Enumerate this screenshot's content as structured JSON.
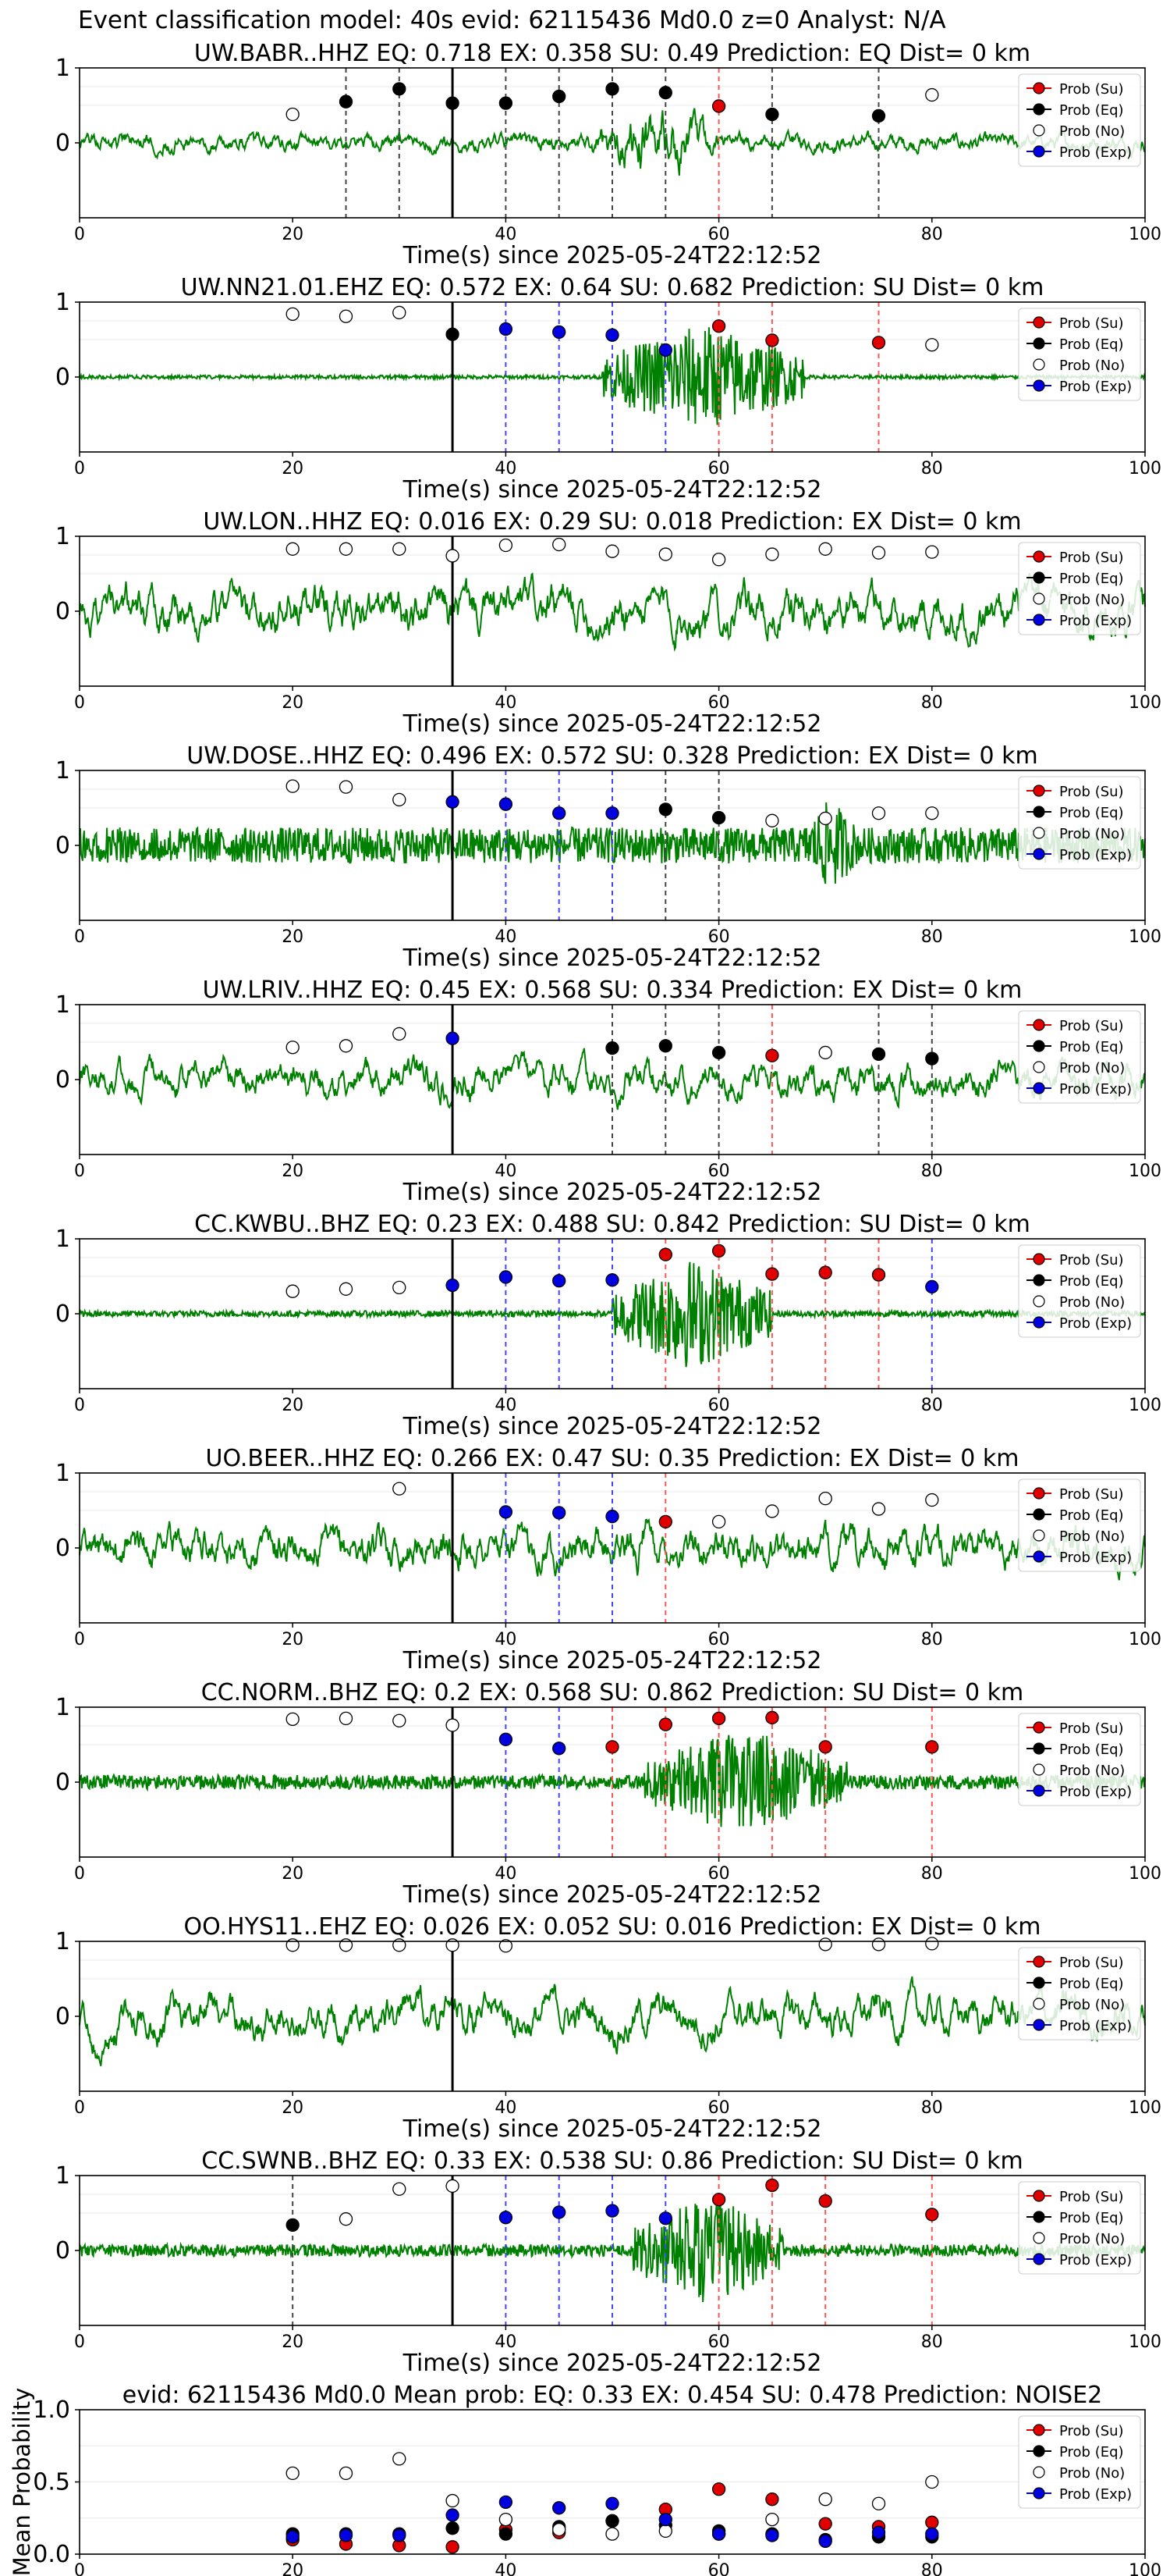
{
  "figure": {
    "title": "Event classification model: 40s evid: 62115436 Md0.0 z=0 Analyst: N/A",
    "legend_position": "top-right",
    "legend_entries": [
      {
        "label": "Prob (Su)",
        "color": "#e00000",
        "marker": "filled"
      },
      {
        "label": "Prob (Eq)",
        "color": "#000000",
        "marker": "filled"
      },
      {
        "label": "Prob (No)",
        "color": "#ffffff",
        "marker": "hollow"
      },
      {
        "label": "Prob (Exp)",
        "color": "#0000e0",
        "marker": "filled"
      }
    ],
    "colors": {
      "waveform": "#008000",
      "su": "#e00000",
      "eq": "#000000",
      "no": "#ffffff",
      "exp": "#0000e0",
      "dash_su": "#ff5555",
      "dash_eq": "#444444",
      "dash_exp": "#4444ff"
    },
    "xlabel": "Time(s) since 2025-05-24T22:12:52"
  },
  "chart_data": [
    {
      "type": "line",
      "station": "UW.BABR..HHZ",
      "title": "UW.BABR..HHZ   EQ: 0.718  EX: 0.358  SU: 0.49   Prediction: EQ    Dist= 0 km",
      "xlim": [
        0,
        100
      ],
      "ylim": [
        -1,
        1
      ],
      "xticks": [
        0,
        20,
        40,
        60,
        80,
        100
      ],
      "yticks": [
        0,
        1
      ],
      "signal_start": 35,
      "amp": 0.25,
      "burst": [
        48,
        60,
        1.0
      ],
      "seed": 1,
      "smooth": 0.2,
      "points": {
        "su": [
          [
            60,
            0.49
          ]
        ],
        "eq": [
          [
            25,
            0.55
          ],
          [
            30,
            0.72
          ],
          [
            35,
            0.53
          ],
          [
            40,
            0.53
          ],
          [
            45,
            0.62
          ],
          [
            50,
            0.72
          ],
          [
            55,
            0.67
          ],
          [
            65,
            0.38
          ],
          [
            75,
            0.36
          ]
        ],
        "no": [
          [
            20,
            0.38
          ],
          [
            80,
            0.64
          ]
        ],
        "exp": []
      }
    },
    {
      "type": "line",
      "station": "UW.NN21.01.EHZ",
      "title": "UW.NN21.01.EHZ   EQ: 0.572  EX: 0.64  SU: 0.682   Prediction: SU    Dist= 0 km",
      "xlim": [
        0,
        100
      ],
      "ylim": [
        -1,
        1
      ],
      "xticks": [
        0,
        20,
        40,
        60,
        80,
        100
      ],
      "yticks": [
        0,
        1
      ],
      "signal_start": 35,
      "amp": 0.03,
      "burst": [
        49,
        68,
        0.9
      ],
      "seed": 2,
      "smooth": 0.7,
      "points": {
        "su": [
          [
            60,
            0.68
          ],
          [
            65,
            0.49
          ],
          [
            75,
            0.46
          ]
        ],
        "eq": [
          [
            35,
            0.57
          ]
        ],
        "no": [
          [
            20,
            0.84
          ],
          [
            25,
            0.81
          ],
          [
            30,
            0.86
          ],
          [
            80,
            0.43
          ]
        ],
        "exp": [
          [
            40,
            0.64
          ],
          [
            45,
            0.6
          ],
          [
            50,
            0.56
          ],
          [
            55,
            0.36
          ]
        ]
      }
    },
    {
      "type": "line",
      "station": "UW.LON..HHZ",
      "title": "UW.LON..HHZ   EQ: 0.016  EX: 0.29  SU: 0.018   Prediction: EX    Dist= 0 km",
      "xlim": [
        0,
        100
      ],
      "ylim": [
        -1,
        1
      ],
      "xticks": [
        0,
        20,
        40,
        60,
        80,
        100
      ],
      "yticks": [
        0,
        1
      ],
      "signal_start": 35,
      "amp": 0.8,
      "burst": [
        0,
        0,
        0
      ],
      "seed": 3,
      "smooth": 0.12,
      "points": {
        "su": [],
        "eq": [],
        "no": [
          [
            20,
            0.83
          ],
          [
            25,
            0.83
          ],
          [
            30,
            0.83
          ],
          [
            35,
            0.74
          ],
          [
            40,
            0.88
          ],
          [
            45,
            0.89
          ],
          [
            50,
            0.8
          ],
          [
            55,
            0.76
          ],
          [
            60,
            0.69
          ],
          [
            65,
            0.76
          ],
          [
            70,
            0.83
          ],
          [
            75,
            0.78
          ],
          [
            80,
            0.79
          ]
        ],
        "exp": []
      }
    },
    {
      "type": "line",
      "station": "UW.DOSE..HHZ",
      "title": "UW.DOSE..HHZ   EQ: 0.496  EX: 0.572  SU: 0.328   Prediction: EX    Dist= 0 km",
      "xlim": [
        0,
        100
      ],
      "ylim": [
        -1,
        1
      ],
      "xticks": [
        0,
        20,
        40,
        60,
        80,
        100
      ],
      "yticks": [
        0,
        1
      ],
      "signal_start": 35,
      "amp": 0.3,
      "burst": [
        68,
        73,
        0.8
      ],
      "seed": 4,
      "smooth": 0.4,
      "points": {
        "su": [],
        "eq": [
          [
            55,
            0.48
          ],
          [
            60,
            0.37
          ]
        ],
        "no": [
          [
            20,
            0.79
          ],
          [
            25,
            0.78
          ],
          [
            30,
            0.61
          ],
          [
            65,
            0.33
          ],
          [
            70,
            0.36
          ],
          [
            75,
            0.43
          ],
          [
            80,
            0.43
          ]
        ],
        "exp": [
          [
            35,
            0.58
          ],
          [
            40,
            0.55
          ],
          [
            45,
            0.43
          ],
          [
            50,
            0.43
          ]
        ]
      }
    },
    {
      "type": "line",
      "station": "UW.LRIV..HHZ",
      "title": "UW.LRIV..HHZ   EQ: 0.45  EX: 0.568  SU: 0.334   Prediction: EX    Dist= 0 km",
      "xlim": [
        0,
        100
      ],
      "ylim": [
        -1,
        1
      ],
      "xticks": [
        0,
        20,
        40,
        60,
        80,
        100
      ],
      "yticks": [
        0,
        1
      ],
      "signal_start": 35,
      "amp": 0.55,
      "burst": [
        0,
        0,
        0
      ],
      "seed": 5,
      "smooth": 0.15,
      "points": {
        "su": [
          [
            65,
            0.32
          ]
        ],
        "eq": [
          [
            50,
            0.42
          ],
          [
            55,
            0.45
          ],
          [
            60,
            0.36
          ],
          [
            75,
            0.34
          ],
          [
            80,
            0.28
          ]
        ],
        "no": [
          [
            20,
            0.43
          ],
          [
            25,
            0.45
          ],
          [
            30,
            0.61
          ],
          [
            70,
            0.36
          ]
        ],
        "exp": [
          [
            35,
            0.55
          ]
        ]
      }
    },
    {
      "type": "line",
      "station": "CC.KWBU..BHZ",
      "title": "CC.KWBU..BHZ   EQ: 0.23  EX: 0.488  SU: 0.842   Prediction: SU    Dist= 0 km",
      "xlim": [
        0,
        100
      ],
      "ylim": [
        -1,
        1
      ],
      "xticks": [
        0,
        20,
        40,
        60,
        80,
        100
      ],
      "yticks": [
        0,
        1
      ],
      "signal_start": 35,
      "amp": 0.05,
      "burst": [
        50,
        65,
        0.95
      ],
      "seed": 6,
      "smooth": 0.5,
      "points": {
        "su": [
          [
            55,
            0.79
          ],
          [
            60,
            0.84
          ],
          [
            65,
            0.53
          ],
          [
            70,
            0.55
          ],
          [
            75,
            0.52
          ]
        ],
        "eq": [],
        "no": [
          [
            20,
            0.3
          ],
          [
            25,
            0.33
          ],
          [
            30,
            0.35
          ]
        ],
        "exp": [
          [
            35,
            0.38
          ],
          [
            40,
            0.49
          ],
          [
            45,
            0.44
          ],
          [
            50,
            0.45
          ],
          [
            80,
            0.36
          ]
        ]
      }
    },
    {
      "type": "line",
      "station": "UO.BEER..HHZ",
      "title": "UO.BEER..HHZ   EQ: 0.266  EX: 0.47  SU: 0.35   Prediction: EX    Dist= 0 km",
      "xlim": [
        0,
        100
      ],
      "ylim": [
        -1,
        1
      ],
      "xticks": [
        0,
        20,
        40,
        60,
        80,
        100
      ],
      "yticks": [
        0,
        1
      ],
      "signal_start": 35,
      "amp": 0.55,
      "burst": [
        50,
        56,
        0.8
      ],
      "seed": 7,
      "smooth": 0.2,
      "points": {
        "su": [
          [
            55,
            0.35
          ]
        ],
        "eq": [],
        "no": [
          [
            30,
            0.79
          ],
          [
            60,
            0.35
          ],
          [
            65,
            0.49
          ],
          [
            70,
            0.66
          ],
          [
            75,
            0.52
          ],
          [
            80,
            0.64
          ]
        ],
        "exp": [
          [
            40,
            0.48
          ],
          [
            45,
            0.47
          ],
          [
            50,
            0.42
          ]
        ]
      }
    },
    {
      "type": "line",
      "station": "CC.NORM..BHZ",
      "title": "CC.NORM..BHZ   EQ: 0.2  EX: 0.568  SU: 0.862   Prediction: SU    Dist= 0 km",
      "xlim": [
        0,
        100
      ],
      "ylim": [
        -1,
        1
      ],
      "xticks": [
        0,
        20,
        40,
        60,
        80,
        100
      ],
      "yticks": [
        0,
        1
      ],
      "signal_start": 35,
      "amp": 0.12,
      "burst": [
        53,
        72,
        0.9
      ],
      "seed": 8,
      "smooth": 0.5,
      "points": {
        "su": [
          [
            50,
            0.47
          ],
          [
            55,
            0.77
          ],
          [
            60,
            0.85
          ],
          [
            65,
            0.86
          ],
          [
            70,
            0.47
          ],
          [
            80,
            0.47
          ]
        ],
        "eq": [],
        "no": [
          [
            20,
            0.84
          ],
          [
            25,
            0.85
          ],
          [
            30,
            0.82
          ],
          [
            35,
            0.76
          ]
        ],
        "exp": [
          [
            40,
            0.57
          ],
          [
            45,
            0.45
          ]
        ]
      }
    },
    {
      "type": "line",
      "station": "OO.HYS11..EHZ",
      "title": "OO.HYS11..EHZ   EQ: 0.026  EX: 0.052  SU: 0.016   Prediction: EX    Dist= 0 km",
      "xlim": [
        0,
        100
      ],
      "ylim": [
        -1,
        1
      ],
      "xticks": [
        0,
        20,
        40,
        60,
        80,
        100
      ],
      "yticks": [
        0,
        1
      ],
      "signal_start": 35,
      "amp": 0.85,
      "burst": [
        0,
        0,
        0
      ],
      "seed": 9,
      "smooth": 0.08,
      "points": {
        "su": [],
        "eq": [],
        "no": [
          [
            20,
            0.95
          ],
          [
            25,
            0.95
          ],
          [
            30,
            0.95
          ],
          [
            35,
            0.95
          ],
          [
            40,
            0.94
          ],
          [
            70,
            0.96
          ],
          [
            75,
            0.96
          ],
          [
            80,
            0.97
          ]
        ],
        "exp": []
      }
    },
    {
      "type": "line",
      "station": "CC.SWNB..BHZ",
      "title": "CC.SWNB..BHZ   EQ: 0.33  EX: 0.538  SU: 0.86   Prediction: SU    Dist= 0 km",
      "xlim": [
        0,
        100
      ],
      "ylim": [
        -1,
        1
      ],
      "xticks": [
        0,
        20,
        40,
        60,
        80,
        100
      ],
      "yticks": [
        0,
        1
      ],
      "signal_start": 35,
      "amp": 0.1,
      "burst": [
        52,
        66,
        0.95
      ],
      "seed": 10,
      "smooth": 0.5,
      "points": {
        "su": [
          [
            60,
            0.68
          ],
          [
            65,
            0.87
          ],
          [
            70,
            0.66
          ],
          [
            80,
            0.48
          ]
        ],
        "eq": [
          [
            20,
            0.34
          ]
        ],
        "no": [
          [
            25,
            0.42
          ],
          [
            30,
            0.82
          ],
          [
            35,
            0.86
          ]
        ],
        "exp": [
          [
            40,
            0.44
          ],
          [
            45,
            0.51
          ],
          [
            50,
            0.53
          ],
          [
            55,
            0.43
          ]
        ]
      }
    },
    {
      "type": "scatter",
      "station": "mean",
      "title": "evid: 62115436  Md0.0   Mean prob:   EQ: 0.33  EX: 0.454  SU: 0.478   Prediction: NOISE2",
      "ylabel": "Mean Probability",
      "xlim": [
        0,
        100
      ],
      "ylim": [
        0,
        1
      ],
      "xticks": [
        0,
        20,
        40,
        60,
        80,
        100
      ],
      "yticks": [
        0.0,
        0.5,
        1.0
      ],
      "points": {
        "su": [
          [
            20,
            0.1
          ],
          [
            25,
            0.07
          ],
          [
            30,
            0.06
          ],
          [
            35,
            0.05
          ],
          [
            40,
            0.17
          ],
          [
            45,
            0.15
          ],
          [
            50,
            0.23
          ],
          [
            55,
            0.31
          ],
          [
            60,
            0.45
          ],
          [
            65,
            0.38
          ],
          [
            70,
            0.21
          ],
          [
            75,
            0.19
          ],
          [
            80,
            0.22
          ]
        ],
        "eq": [
          [
            20,
            0.14
          ],
          [
            25,
            0.14
          ],
          [
            30,
            0.14
          ],
          [
            35,
            0.18
          ],
          [
            40,
            0.14
          ],
          [
            45,
            0.19
          ],
          [
            50,
            0.23
          ],
          [
            55,
            0.2
          ],
          [
            60,
            0.16
          ],
          [
            65,
            0.14
          ],
          [
            70,
            0.1
          ],
          [
            75,
            0.12
          ],
          [
            80,
            0.12
          ]
        ],
        "no": [
          [
            20,
            0.56
          ],
          [
            25,
            0.56
          ],
          [
            30,
            0.66
          ],
          [
            35,
            0.37
          ],
          [
            40,
            0.24
          ],
          [
            45,
            0.17
          ],
          [
            50,
            0.14
          ],
          [
            55,
            0.16
          ],
          [
            60,
            0.14
          ],
          [
            65,
            0.24
          ],
          [
            70,
            0.38
          ],
          [
            75,
            0.35
          ],
          [
            80,
            0.5
          ]
        ],
        "exp": [
          [
            20,
            0.12
          ],
          [
            25,
            0.13
          ],
          [
            30,
            0.13
          ],
          [
            35,
            0.27
          ],
          [
            40,
            0.36
          ],
          [
            45,
            0.32
          ],
          [
            50,
            0.35
          ],
          [
            55,
            0.24
          ],
          [
            60,
            0.14
          ],
          [
            65,
            0.13
          ],
          [
            70,
            0.09
          ],
          [
            75,
            0.15
          ],
          [
            80,
            0.14
          ]
        ]
      }
    }
  ]
}
